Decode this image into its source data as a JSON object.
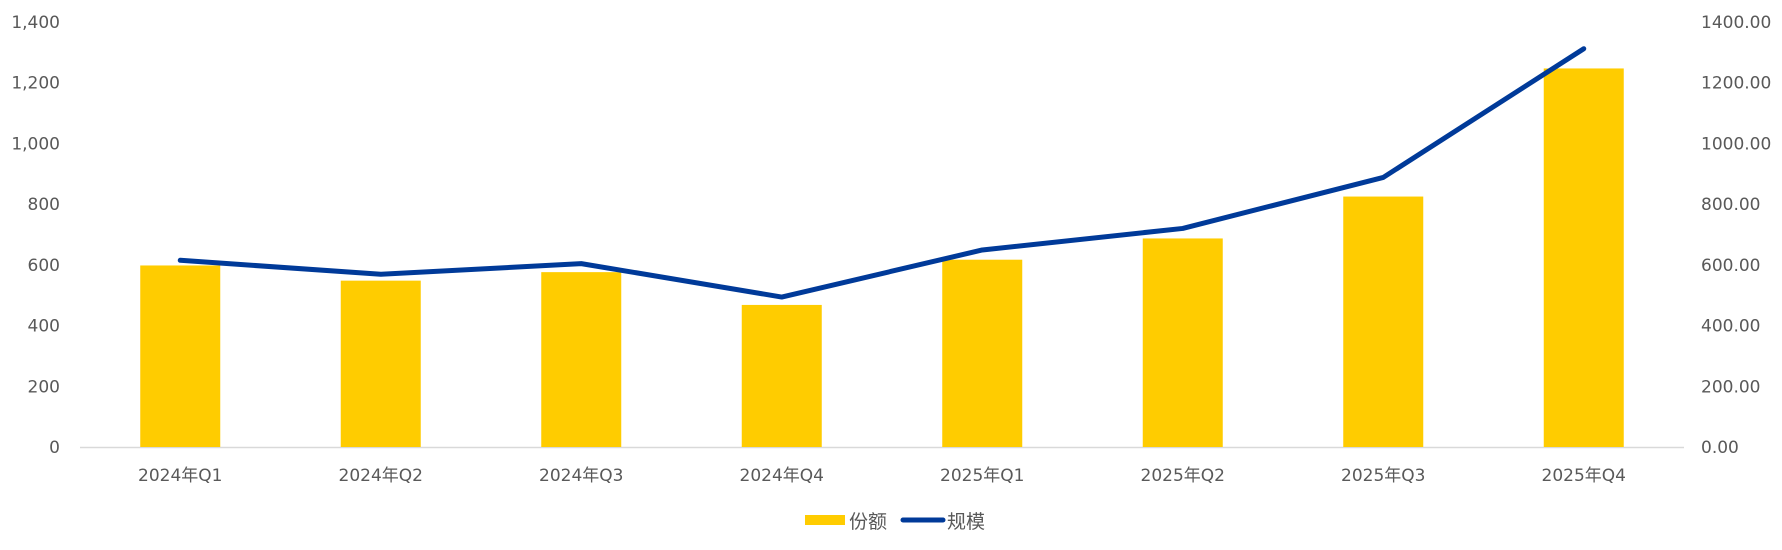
{
  "chart_data": {
    "type": "bar+line",
    "categories": [
      "2024年Q1",
      "2024年Q2",
      "2024年Q3",
      "2024年Q4",
      "2025年Q1",
      "2025年Q2",
      "2025年Q3",
      "2025年Q4"
    ],
    "series": [
      {
        "name": "份额",
        "type": "bar",
        "axis": "left",
        "color": "#FFCC00",
        "values": [
          598,
          548,
          576,
          468,
          617,
          687,
          825,
          1247
        ]
      },
      {
        "name": "规模",
        "type": "line",
        "axis": "right",
        "color": "#003A99",
        "values": [
          615,
          569,
          604,
          494,
          649,
          720,
          888,
          1312
        ]
      }
    ],
    "y_left": {
      "ylim": [
        0,
        1400
      ],
      "ticks": [
        "0",
        "200",
        "400",
        "600",
        "800",
        "1,000",
        "1,200",
        "1,400"
      ]
    },
    "y_right": {
      "ylim": [
        0,
        1400
      ],
      "ticks": [
        "0.00",
        "200.00",
        "400.00",
        "600.00",
        "800.00",
        "1000.00",
        "1200.00",
        "1400.00"
      ]
    },
    "grid": false,
    "legend_position": "bottom-center"
  }
}
